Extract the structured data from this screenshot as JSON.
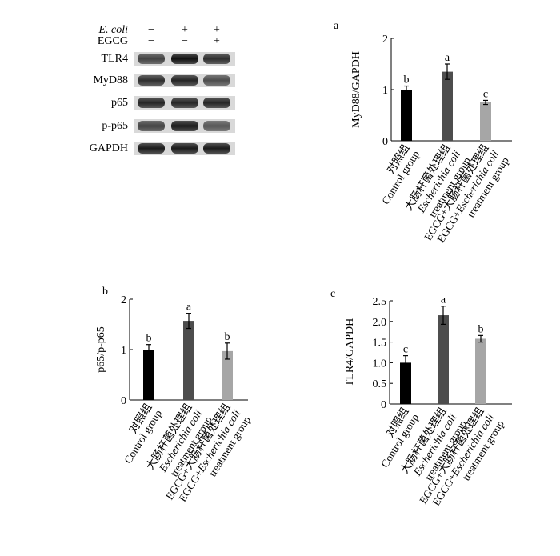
{
  "blot": {
    "conditions": [
      {
        "label": "E. coli",
        "italic": true,
        "symbols": [
          "−",
          "+",
          "+"
        ]
      },
      {
        "label": "EGCG",
        "italic": false,
        "symbols": [
          "−",
          "−",
          "+"
        ]
      }
    ],
    "rows": [
      {
        "label": "TLR4",
        "intensity": [
          0.75,
          1.0,
          0.85
        ]
      },
      {
        "label": "MyD88",
        "intensity": [
          0.85,
          0.9,
          0.7
        ]
      },
      {
        "label": "p65",
        "intensity": [
          0.9,
          0.9,
          0.9
        ]
      },
      {
        "label": "p-p65",
        "intensity": [
          0.75,
          0.95,
          0.65
        ]
      },
      {
        "label": "GAPDH",
        "intensity": [
          0.95,
          0.95,
          0.95
        ]
      }
    ]
  },
  "chart_data": [
    {
      "type": "bar",
      "panel": "a",
      "ylabel": "MyD88/GAPDH",
      "ylim": [
        0,
        2
      ],
      "yticks": [
        "0",
        "1",
        "2"
      ],
      "categories": [
        [
          "对照组",
          "Control group"
        ],
        [
          "大肠杆菌处理组",
          "Escherichia coli",
          "treatment group"
        ],
        [
          "EGCG+大肠杆菌处理组",
          "EGCG+Escherichia coli",
          "treatment group"
        ]
      ],
      "values": [
        1.0,
        1.35,
        0.75
      ],
      "errors": [
        0.07,
        0.15,
        0.04
      ],
      "letters": [
        "b",
        "a",
        "c"
      ],
      "colors": [
        "#000000",
        "#4d4d4d",
        "#a6a6a6"
      ]
    },
    {
      "type": "bar",
      "panel": "b",
      "ylabel": "p65/p-p65",
      "ylim": [
        0,
        2
      ],
      "yticks": [
        "0",
        "1",
        "2"
      ],
      "categories": [
        [
          "对照组",
          "Control group"
        ],
        [
          "大肠杆菌处理组",
          "Escherichia coli",
          "treatment group"
        ],
        [
          "EGCG+大肠杆菌处理组",
          "EGCG+Escherichia coli",
          "treatment group"
        ]
      ],
      "values": [
        1.0,
        1.57,
        0.97
      ],
      "errors": [
        0.1,
        0.15,
        0.16
      ],
      "letters": [
        "b",
        "a",
        "b"
      ],
      "colors": [
        "#000000",
        "#4d4d4d",
        "#a6a6a6"
      ]
    },
    {
      "type": "bar",
      "panel": "c",
      "ylabel": "TLR4/GAPDH",
      "ylim": [
        0,
        2.5
      ],
      "yticks": [
        "0",
        "0.5",
        "1.0",
        "1.5",
        "2.0",
        "2.5"
      ],
      "categories": [
        [
          "对照组",
          "Control group"
        ],
        [
          "大肠杆菌处理组",
          "Escherichia coli",
          "treatment group"
        ],
        [
          "EGCG+大肠杆菌处理组",
          "EGCG+Escherichia coli",
          "treatment group"
        ]
      ],
      "values": [
        1.0,
        2.15,
        1.58
      ],
      "errors": [
        0.17,
        0.22,
        0.08
      ],
      "letters": [
        "c",
        "a",
        "b"
      ],
      "colors": [
        "#000000",
        "#4d4d4d",
        "#a6a6a6"
      ]
    }
  ]
}
